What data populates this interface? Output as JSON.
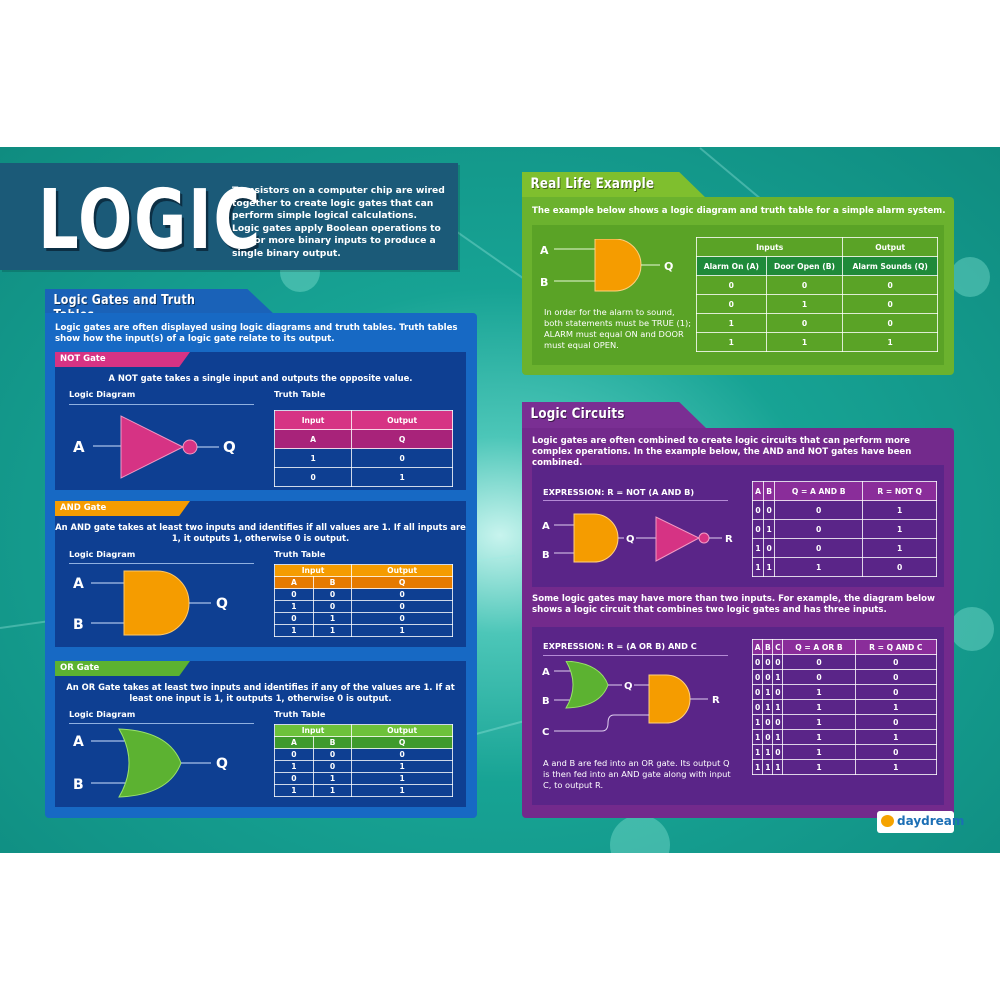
{
  "title": "Logic",
  "intro": "Transistors on a computer chip are wired together to create logic gates that can perform simple logical calculations. Logic gates apply Boolean operations to one or more binary inputs to produce a single binary output.",
  "colors": {
    "teal": "#17a394",
    "title_bar": "#1b5a78",
    "blue": "#1769c4",
    "navy": "#0e3f92",
    "pink": "#d63384",
    "orange": "#f59c00",
    "green": "#6bb22e",
    "purple": "#732a8c"
  },
  "gates_section": {
    "heading": "Logic Gates and Truth Tables",
    "intro": "Logic gates are often displayed using logic diagrams and truth tables. Truth tables show how the input(s) of a logic gate relate to its output.",
    "diagram_label": "Logic Diagram",
    "table_label": "Truth Table",
    "not_gate": {
      "label": "NOT Gate",
      "description": "A NOT gate takes a single input and outputs the opposite value.",
      "inputs": [
        "A"
      ],
      "output": "Q",
      "table": {
        "header_rows": [
          [
            {
              "t": "Input"
            },
            {
              "t": "Output"
            }
          ],
          [
            {
              "t": "A"
            },
            {
              "t": "Q"
            }
          ]
        ],
        "rows": [
          [
            "1",
            "0"
          ],
          [
            "0",
            "1"
          ]
        ]
      }
    },
    "and_gate": {
      "label": "AND Gate",
      "description": "An AND gate takes at least two inputs and identifies if all values are 1. If all inputs are 1, it outputs 1, otherwise 0 is output.",
      "inputs": [
        "A",
        "B"
      ],
      "output": "Q",
      "table": {
        "header_rows": [
          [
            {
              "t": "Input",
              "c": 2
            },
            {
              "t": "Output"
            }
          ],
          [
            {
              "t": "A"
            },
            {
              "t": "B"
            },
            {
              "t": "Q"
            }
          ]
        ],
        "rows": [
          [
            "0",
            "0",
            "0"
          ],
          [
            "1",
            "0",
            "0"
          ],
          [
            "0",
            "1",
            "0"
          ],
          [
            "1",
            "1",
            "1"
          ]
        ]
      }
    },
    "or_gate": {
      "label": "OR Gate",
      "description": "An OR Gate takes at least two inputs and identifies if any of the values are 1. If at least one input is 1, it outputs 1, otherwise 0 is output.",
      "inputs": [
        "A",
        "B"
      ],
      "output": "Q",
      "table": {
        "header_rows": [
          [
            {
              "t": "Input",
              "c": 2
            },
            {
              "t": "Output"
            }
          ],
          [
            {
              "t": "A"
            },
            {
              "t": "B"
            },
            {
              "t": "Q"
            }
          ]
        ],
        "rows": [
          [
            "0",
            "0",
            "0"
          ],
          [
            "1",
            "0",
            "1"
          ],
          [
            "0",
            "1",
            "1"
          ],
          [
            "1",
            "1",
            "1"
          ]
        ]
      }
    }
  },
  "real_life": {
    "heading": "Real Life Example",
    "intro": "The example below shows a logic diagram and truth table for a simple alarm system.",
    "inputs": [
      "A",
      "B"
    ],
    "output": "Q",
    "explanation": "In order for the alarm to sound, both statements must be TRUE (1); ALARM must equal ON and DOOR must equal OPEN.",
    "table": {
      "header_rows": [
        [
          {
            "t": "Inputs",
            "c": 2
          },
          {
            "t": "Output"
          }
        ],
        [
          {
            "t": "Alarm On (A)"
          },
          {
            "t": "Door Open (B)"
          },
          {
            "t": "Alarm Sounds (Q)"
          }
        ]
      ],
      "rows": [
        [
          "0",
          "0",
          "0"
        ],
        [
          "0",
          "1",
          "0"
        ],
        [
          "1",
          "0",
          "0"
        ],
        [
          "1",
          "1",
          "1"
        ]
      ]
    }
  },
  "circuits": {
    "heading": "Logic Circuits",
    "intro": "Logic gates are often combined to create logic circuits that can perform more complex operations. In the example below, the AND and NOT gates have been combined.",
    "example1": {
      "expression": "EXPRESSION: R = NOT (A AND B)",
      "labels": {
        "a": "A",
        "b": "B",
        "q": "Q",
        "r": "R"
      },
      "table": {
        "header_rows": [
          [
            {
              "t": "A"
            },
            {
              "t": "B"
            },
            {
              "t": "Q = A AND B"
            },
            {
              "t": "R = NOT Q"
            }
          ]
        ],
        "rows": [
          [
            "0",
            "0",
            "0",
            "1"
          ],
          [
            "0",
            "1",
            "0",
            "1"
          ],
          [
            "1",
            "0",
            "0",
            "1"
          ],
          [
            "1",
            "1",
            "1",
            "0"
          ]
        ]
      }
    },
    "middle_text": "Some logic gates may have more than two inputs. For example, the diagram below shows a logic circuit that combines two logic gates and has three inputs.",
    "example2": {
      "expression": "EXPRESSION: R = (A OR B) AND C",
      "labels": {
        "a": "A",
        "b": "B",
        "c": "C",
        "q": "Q",
        "r": "R"
      },
      "explanation": "A and B are fed into an OR gate. Its output Q is then fed into an AND gate along with input C, to output R.",
      "table": {
        "header_rows": [
          [
            {
              "t": "A"
            },
            {
              "t": "B"
            },
            {
              "t": "C"
            },
            {
              "t": "Q = A OR B"
            },
            {
              "t": "R = Q AND C"
            }
          ]
        ],
        "rows": [
          [
            "0",
            "0",
            "0",
            "0",
            "0"
          ],
          [
            "0",
            "0",
            "1",
            "0",
            "0"
          ],
          [
            "0",
            "1",
            "0",
            "1",
            "0"
          ],
          [
            "0",
            "1",
            "1",
            "1",
            "1"
          ],
          [
            "1",
            "0",
            "0",
            "1",
            "0"
          ],
          [
            "1",
            "0",
            "1",
            "1",
            "1"
          ],
          [
            "1",
            "1",
            "0",
            "1",
            "0"
          ],
          [
            "1",
            "1",
            "1",
            "1",
            "1"
          ]
        ]
      }
    }
  },
  "logo": {
    "name": "daydream",
    "icon": "daydream-logo-icon"
  }
}
